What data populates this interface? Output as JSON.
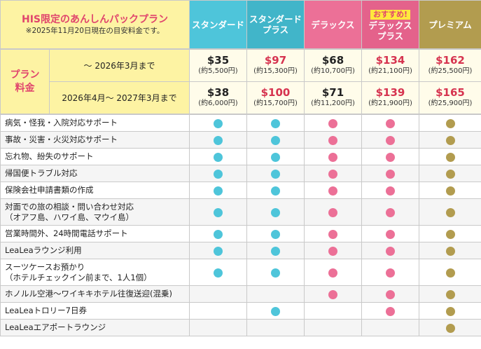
{
  "header": {
    "title": "HIS限定のあんしんパックプラン",
    "note": "※2025年11月20日現在の目安料金です。"
  },
  "plans": [
    {
      "name_line1": "スタンダード",
      "name_line2": "",
      "badge": "",
      "color": "#4ec5da"
    },
    {
      "name_line1": "スタンダード",
      "name_line2": "プラス",
      "badge": "",
      "color": "#41b5c9"
    },
    {
      "name_line1": "デラックス",
      "name_line2": "",
      "badge": "",
      "color": "#ec7097"
    },
    {
      "name_line1": "デラックス",
      "name_line2": "プラス",
      "badge": "おすすめ!",
      "color": "#e4628b"
    },
    {
      "name_line1": "プレミアム",
      "name_line2": "",
      "badge": "",
      "color": "#b29c4f"
    }
  ],
  "pricing": {
    "label_line1": "プラン",
    "label_line2": "料金",
    "periods": [
      {
        "label": "～ 2026年3月まで",
        "prices": [
          {
            "usd": "$35",
            "jpy": "(約5,500円)"
          },
          {
            "usd": "$97",
            "jpy": "(約15,300円)"
          },
          {
            "usd": "$68",
            "jpy": "(約10,700円)"
          },
          {
            "usd": "$134",
            "jpy": "(約21,100円)"
          },
          {
            "usd": "$162",
            "jpy": "(約25,500円)"
          }
        ]
      },
      {
        "label": "2026年4月～ 2027年3月まで",
        "prices": [
          {
            "usd": "$38",
            "jpy": "(約6,000円)"
          },
          {
            "usd": "$100",
            "jpy": "(約15,700円)"
          },
          {
            "usd": "$71",
            "jpy": "(約11,200円)"
          },
          {
            "usd": "$139",
            "jpy": "(約21,900円)"
          },
          {
            "usd": "$165",
            "jpy": "(約25,900円)"
          }
        ]
      }
    ]
  },
  "features": [
    {
      "label_line1": "病気・怪我・入院対応サポート",
      "label_line2": "",
      "included": [
        true,
        true,
        true,
        true,
        true
      ]
    },
    {
      "label_line1": "事故・災害・火災対応サポート",
      "label_line2": "",
      "included": [
        true,
        true,
        true,
        true,
        true
      ]
    },
    {
      "label_line1": "忘れ物、紛失のサポート",
      "label_line2": "",
      "included": [
        true,
        true,
        true,
        true,
        true
      ]
    },
    {
      "label_line1": "帰国便トラブル対応",
      "label_line2": "",
      "included": [
        true,
        true,
        true,
        true,
        true
      ]
    },
    {
      "label_line1": "保険会社申請書類の作成",
      "label_line2": "",
      "included": [
        true,
        true,
        true,
        true,
        true
      ]
    },
    {
      "label_line1": "対面での旅の相談・問い合わせ対応",
      "label_line2": "（オアフ島、ハワイ島、マウイ島）",
      "included": [
        true,
        true,
        true,
        true,
        true
      ]
    },
    {
      "label_line1": "営業時間外、24時間電話サポート",
      "label_line2": "",
      "included": [
        true,
        true,
        true,
        true,
        true
      ]
    },
    {
      "label_line1": "LeaLeaラウンジ利用",
      "label_line2": "",
      "included": [
        true,
        true,
        true,
        true,
        true
      ]
    },
    {
      "label_line1": "スーツケースお預かり",
      "label_line2": "（ホテルチェックイン前まで、1人1個）",
      "included": [
        true,
        true,
        true,
        true,
        true
      ]
    },
    {
      "label_line1": "ホノルル空港～ワイキキホテル往復送迎(混乗)",
      "label_line2": "",
      "included": [
        false,
        false,
        true,
        true,
        true
      ]
    },
    {
      "label_line1": "LeaLeaトロリー7日券",
      "label_line2": "",
      "included": [
        false,
        true,
        false,
        true,
        true
      ]
    },
    {
      "label_line1": "LeaLeaエアポートラウンジ",
      "label_line2": "",
      "included": [
        false,
        false,
        false,
        false,
        true
      ]
    }
  ]
}
